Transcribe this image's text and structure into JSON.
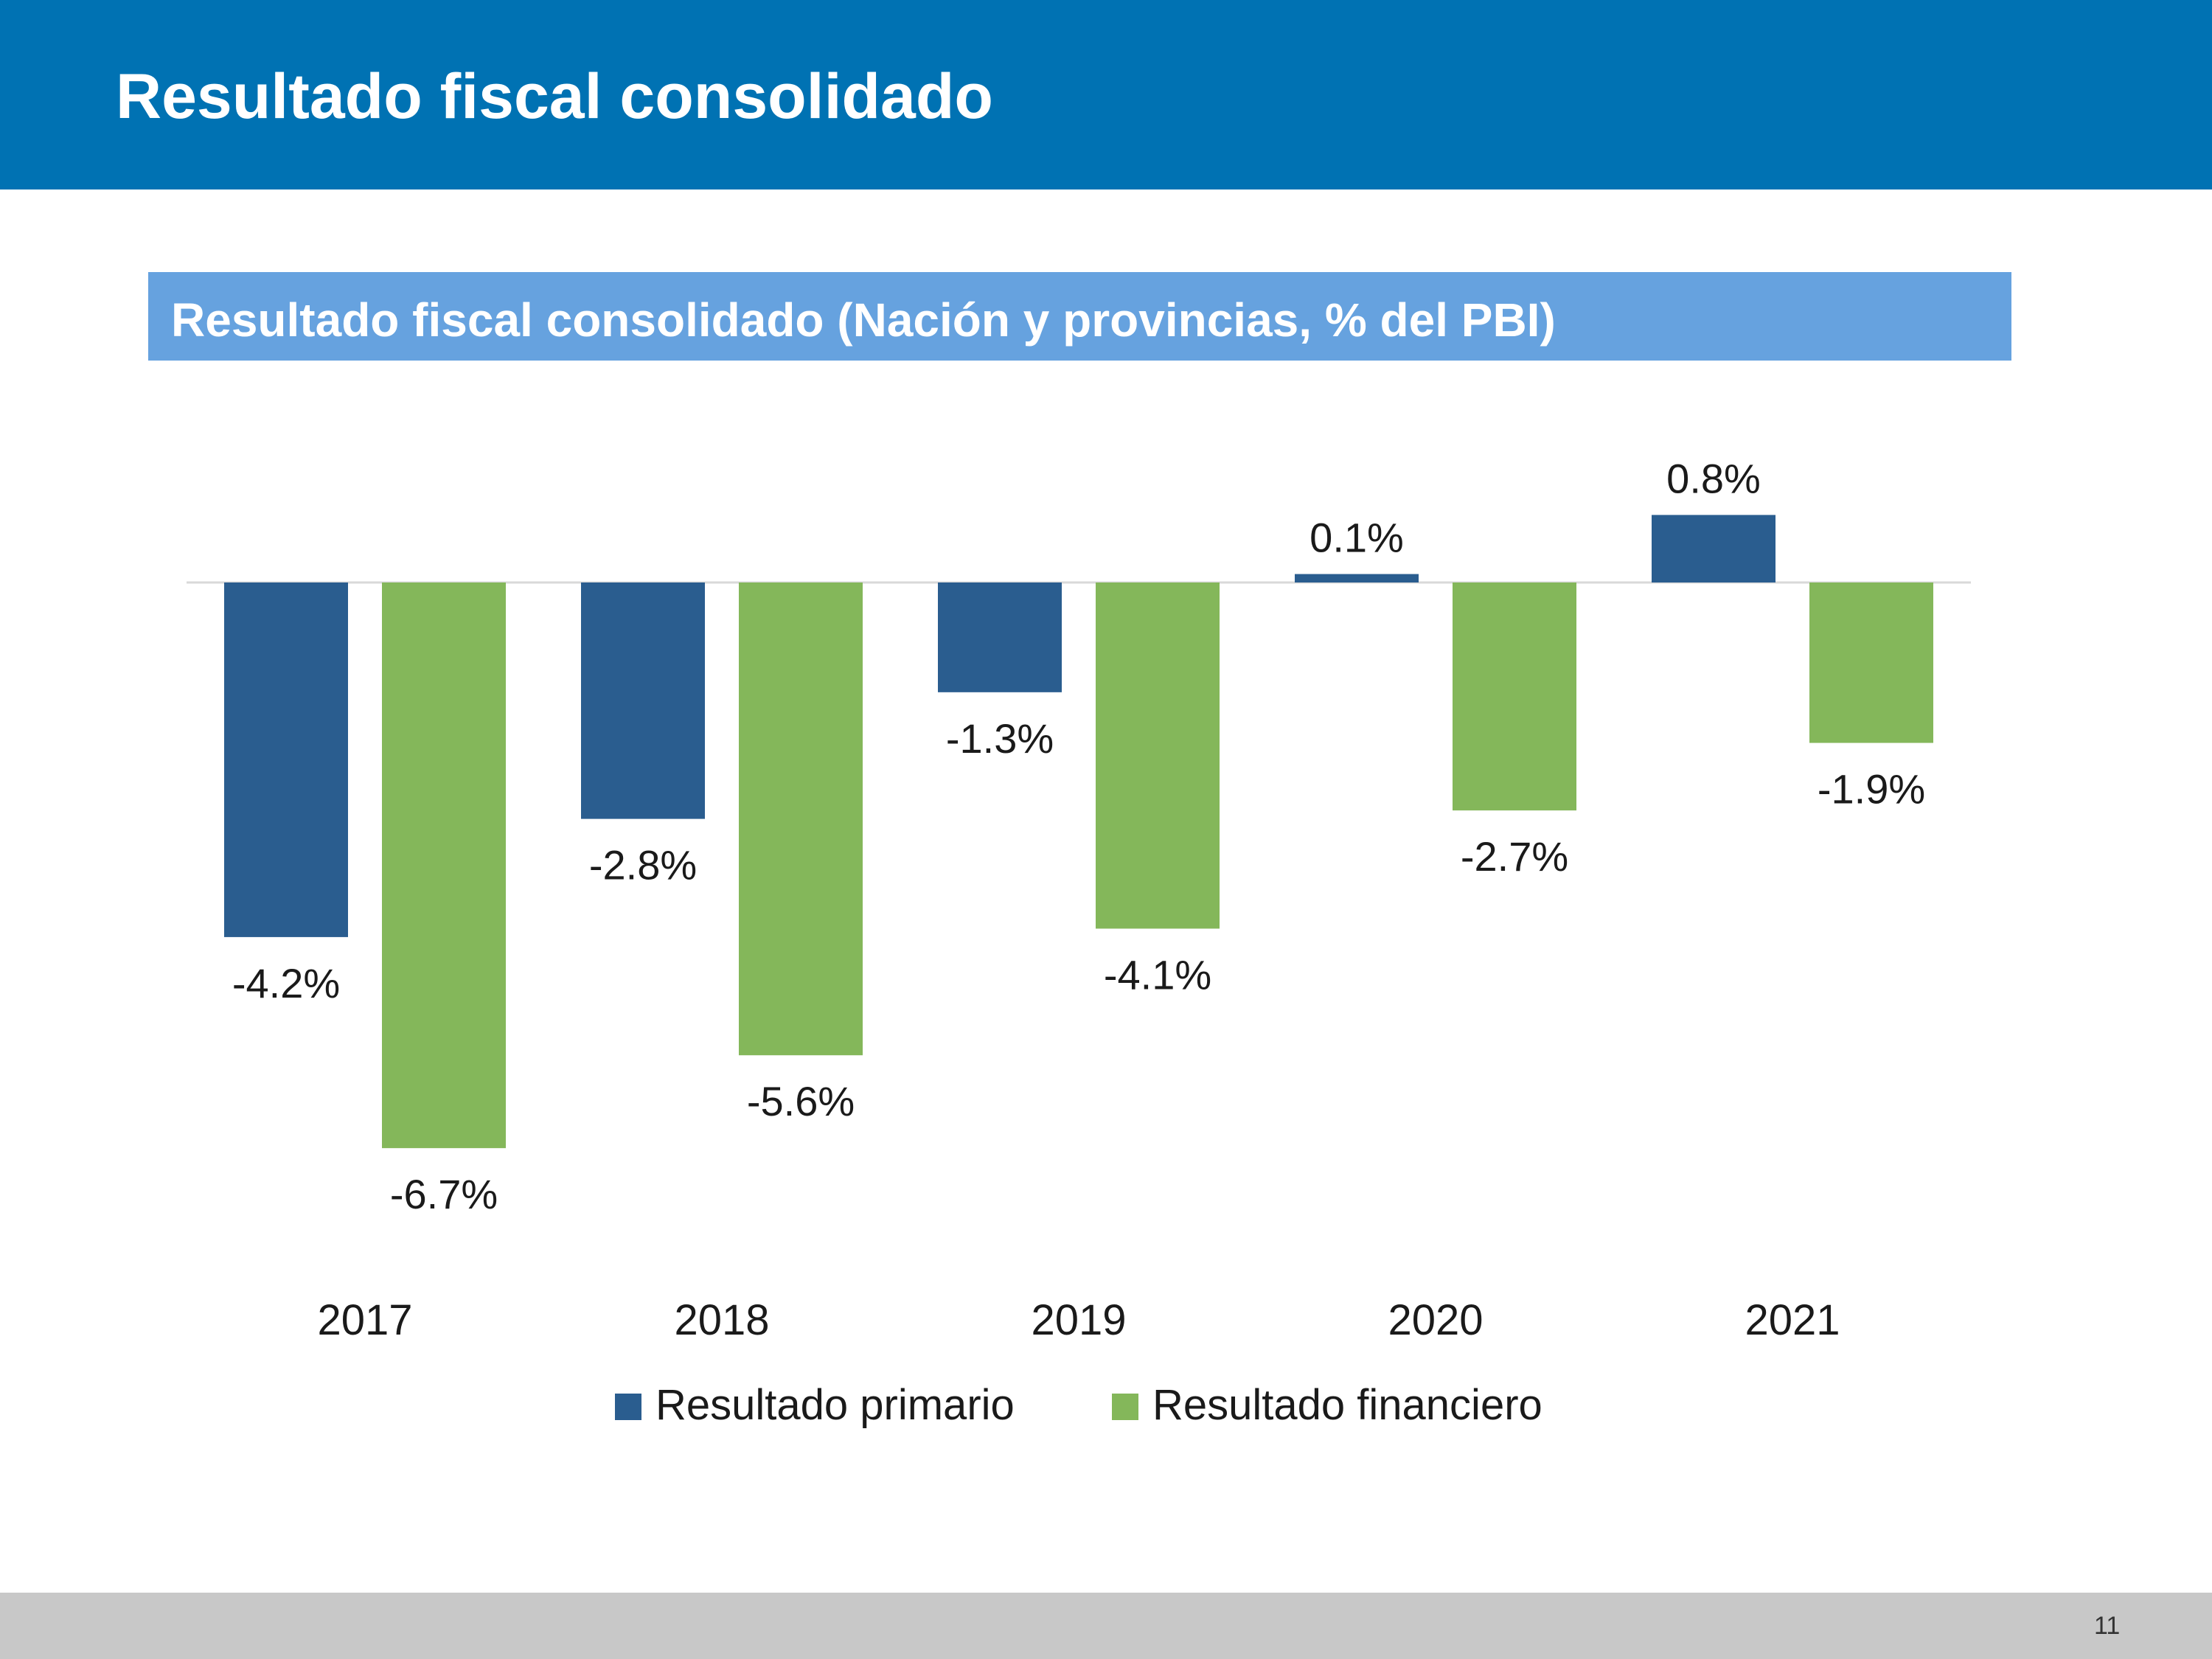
{
  "slide": {
    "title": "Resultado fiscal consolidado",
    "page_number": "11"
  },
  "colors": {
    "header_band": "#0072b3",
    "chart_title_band": "#66a2df",
    "primario": "#2a5d8f",
    "financiero": "#84b75a",
    "footer_band": "#c8c8c8"
  },
  "chart_data": {
    "type": "bar",
    "title": "Resultado fiscal consolidado (Nación y provincias, % del PBI)",
    "categories": [
      "2017",
      "2018",
      "2019",
      "2020",
      "2021"
    ],
    "series": [
      {
        "name": "Resultado primario",
        "color": "#2a5d8f",
        "values": [
          -4.2,
          -2.8,
          -1.3,
          0.1,
          0.8
        ],
        "labels": [
          "-4.2%",
          "-2.8%",
          "-1.3%",
          "0.1%",
          "0.8%"
        ]
      },
      {
        "name": "Resultado financiero",
        "color": "#84b75a",
        "values": [
          -6.7,
          -5.6,
          -4.1,
          -2.7,
          -1.9
        ],
        "labels": [
          "-6.7%",
          "-5.6%",
          "-4.1%",
          "-2.7%",
          "-1.9%"
        ]
      }
    ],
    "ylim": [
      -7,
      1
    ],
    "grid": false,
    "legend": "bottom",
    "data_labels": true
  }
}
